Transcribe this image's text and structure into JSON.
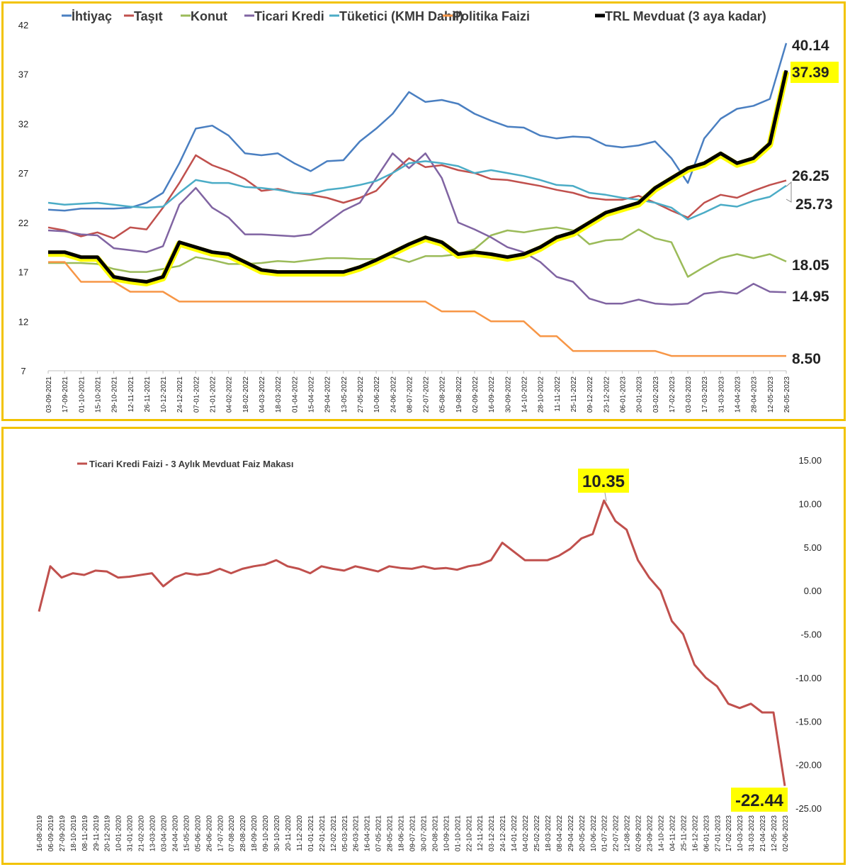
{
  "colors": {
    "border": "#f2c300",
    "highlight": "#ffff00",
    "ihtiyac": "#4a7fc1",
    "tasit": "#c0504d",
    "konut": "#9bbb59",
    "ticari": "#8064a2",
    "tuketici": "#4bacc6",
    "politika": "#f79646",
    "trl": "#000000",
    "spread": "#c0504d"
  },
  "chart_data": [
    {
      "type": "line",
      "legend_position": "top",
      "ylim": [
        7,
        42
      ],
      "yticks": [
        "7",
        "12",
        "17",
        "22",
        "27",
        "32",
        "37",
        "42"
      ],
      "x_labels": [
        "03-09-2021",
        "17-09-2021",
        "01-10-2021",
        "15-10-2021",
        "29-10-2021",
        "12-11-2021",
        "26-11-2021",
        "10-12-2021",
        "24-12-2021",
        "07-01-2022",
        "21-01-2022",
        "04-02-2022",
        "18-02-2022",
        "04-03-2022",
        "18-03-2022",
        "01-04-2022",
        "15-04-2022",
        "29-04-2022",
        "13-05-2022",
        "27-05-2022",
        "10-06-2022",
        "24-06-2022",
        "08-07-2022",
        "22-07-2022",
        "05-08-2022",
        "19-08-2022",
        "02-09-2022",
        "16-09-2022",
        "30-09-2022",
        "14-10-2022",
        "28-10-2022",
        "11-11-2022",
        "25-11-2022",
        "09-12-2022",
        "23-12-2022",
        "06-01-2023",
        "20-01-2023",
        "03-02-2023",
        "17-02-2023",
        "03-03-2023",
        "17-03-2023",
        "31-03-2023",
        "14-04-2023",
        "28-04-2023",
        "12-05-2023",
        "26-05-2023"
      ],
      "series": [
        {
          "name": "İhtiyaç",
          "color_key": "ihtiyac",
          "end_label": "40.14",
          "values": [
            23.3,
            23.2,
            23.4,
            23.4,
            23.4,
            23.5,
            24.0,
            25.0,
            28.0,
            31.5,
            31.8,
            30.8,
            29.0,
            28.8,
            29.0,
            28.0,
            27.2,
            28.2,
            28.3,
            30.2,
            31.5,
            33.0,
            35.2,
            34.2,
            34.4,
            34.0,
            33.0,
            32.3,
            31.7,
            31.6,
            30.8,
            30.5,
            30.7,
            30.6,
            29.8,
            29.6,
            29.8,
            30.2,
            28.5,
            26.0,
            30.5,
            32.5,
            33.5,
            33.8,
            34.5,
            40.14
          ]
        },
        {
          "name": "Taşıt",
          "color_key": "tasit",
          "end_label": "26.25",
          "values": [
            21.5,
            21.2,
            20.6,
            21.0,
            20.4,
            21.5,
            21.3,
            23.5,
            26.0,
            28.8,
            27.8,
            27.2,
            26.4,
            25.2,
            25.4,
            25.0,
            24.8,
            24.5,
            24.0,
            24.5,
            25.2,
            27.0,
            28.5,
            27.6,
            27.8,
            27.3,
            27.0,
            26.4,
            26.3,
            26.0,
            25.7,
            25.3,
            25.0,
            24.5,
            24.3,
            24.3,
            24.7,
            24.0,
            23.2,
            22.5,
            24.0,
            24.8,
            24.5,
            25.2,
            25.8,
            26.25
          ]
        },
        {
          "name": "Konut",
          "color_key": "konut",
          "end_label": "18.05",
          "values": [
            17.9,
            17.9,
            17.9,
            17.8,
            17.3,
            17.0,
            17.0,
            17.3,
            17.6,
            18.5,
            18.2,
            17.8,
            17.8,
            17.9,
            18.1,
            18.0,
            18.2,
            18.4,
            18.4,
            18.3,
            18.3,
            18.5,
            18.0,
            18.6,
            18.6,
            18.8,
            19.3,
            20.7,
            21.2,
            21.0,
            21.3,
            21.5,
            21.2,
            19.8,
            20.2,
            20.3,
            21.3,
            20.4,
            20.0,
            16.5,
            17.5,
            18.4,
            18.8,
            18.4,
            18.8,
            18.05
          ]
        },
        {
          "name": "Ticari Kredi",
          "color_key": "ticari",
          "end_label": "14.95",
          "values": [
            21.2,
            21.1,
            20.8,
            20.7,
            19.4,
            19.2,
            19.0,
            19.6,
            23.8,
            25.5,
            23.5,
            22.5,
            20.8,
            20.8,
            20.7,
            20.6,
            20.8,
            22.0,
            23.2,
            24.0,
            26.5,
            29.0,
            27.5,
            29.0,
            26.5,
            22.0,
            21.3,
            20.5,
            19.5,
            19.0,
            18.0,
            16.5,
            16.0,
            14.3,
            13.8,
            13.8,
            14.2,
            13.8,
            13.7,
            13.8,
            14.8,
            15.0,
            14.8,
            15.8,
            15.0,
            14.95
          ]
        },
        {
          "name": "Tüketici (KMH Dahil)",
          "color_key": "tuketici",
          "end_label": "25.73",
          "values": [
            24.0,
            23.8,
            23.9,
            24.0,
            23.8,
            23.6,
            23.5,
            23.6,
            25.0,
            26.3,
            26.0,
            26.0,
            25.6,
            25.5,
            25.3,
            25.0,
            24.9,
            25.3,
            25.5,
            25.8,
            26.2,
            27.0,
            28.0,
            28.2,
            28.0,
            27.7,
            27.0,
            27.3,
            27.0,
            26.7,
            26.3,
            25.8,
            25.7,
            25.0,
            24.8,
            24.5,
            24.3,
            24.0,
            23.5,
            22.3,
            23.0,
            23.8,
            23.6,
            24.2,
            24.6,
            25.73
          ]
        },
        {
          "name": "Politika Faizi",
          "color_key": "politika",
          "end_label": "8.50",
          "values": [
            18,
            18,
            16,
            16,
            16,
            15,
            15,
            15,
            14,
            14,
            14,
            14,
            14,
            14,
            14,
            14,
            14,
            14,
            14,
            14,
            14,
            14,
            14,
            14,
            13,
            13,
            13,
            12,
            12,
            12,
            10.5,
            10.5,
            9,
            9,
            9,
            9,
            9,
            9,
            8.5,
            8.5,
            8.5,
            8.5,
            8.5,
            8.5,
            8.5,
            8.5
          ]
        },
        {
          "name": "TRL Mevduat (3 aya kadar)",
          "color_key": "trl",
          "end_label": "37.39",
          "values": [
            19.0,
            19.0,
            18.5,
            18.5,
            16.5,
            16.2,
            16.0,
            16.5,
            20.0,
            19.5,
            19.0,
            18.8,
            18.0,
            17.2,
            17.0,
            17.0,
            17.0,
            17.0,
            17.0,
            17.5,
            18.2,
            19.0,
            19.8,
            20.5,
            20.0,
            18.8,
            19.0,
            18.8,
            18.5,
            18.8,
            19.5,
            20.5,
            21.0,
            22.0,
            23.0,
            23.5,
            24.0,
            25.5,
            26.5,
            27.5,
            28.0,
            29.0,
            28.0,
            28.5,
            30.0,
            37.39
          ]
        }
      ]
    },
    {
      "type": "line",
      "legend_position": "top-left",
      "ylim": [
        -25,
        15
      ],
      "yticks": [
        "15.00",
        "10.00",
        "5.00",
        "0.00",
        "-5.00",
        "-10.00",
        "-15.00",
        "-20.00",
        "-25.00"
      ],
      "x_labels": [
        "16-08-2019",
        "06-09-2019",
        "27-09-2019",
        "18-10-2019",
        "08-11-2019",
        "29-11-2019",
        "20-12-2019",
        "10-01-2020",
        "31-01-2020",
        "21-02-2020",
        "13-03-2020",
        "03-04-2020",
        "24-04-2020",
        "15-05-2020",
        "05-06-2020",
        "26-06-2020",
        "17-07-2020",
        "07-08-2020",
        "28-08-2020",
        "18-09-2020",
        "09-10-2020",
        "30-10-2020",
        "20-11-2020",
        "11-12-2020",
        "01-01-2021",
        "22-01-2021",
        "12-02-2021",
        "05-03-2021",
        "26-03-2021",
        "16-04-2021",
        "07-05-2021",
        "28-05-2021",
        "18-06-2021",
        "09-07-2021",
        "30-07-2021",
        "20-08-2021",
        "10-09-2021",
        "01-10-2021",
        "22-10-2021",
        "12-11-2021",
        "03-12-2021",
        "24-12-2021",
        "14-01-2022",
        "04-02-2022",
        "25-02-2022",
        "18-03-2022",
        "08-04-2022",
        "29-04-2022",
        "20-05-2022",
        "10-06-2022",
        "01-07-2022",
        "22-07-2022",
        "12-08-2022",
        "02-09-2022",
        "23-09-2022",
        "14-10-2022",
        "04-11-2022",
        "25-11-2022",
        "16-12-2022",
        "06-01-2023",
        "27-01-2023",
        "17-02-2023",
        "10-03-2023",
        "31-03-2023",
        "21-04-2023",
        "12-05-2023",
        "02-06-2023"
      ],
      "series": [
        {
          "name": "Ticari Kredi Faizi - 3 Aylık Mevduat Faiz Makası",
          "color_key": "spread",
          "values": [
            -2.4,
            2.8,
            1.5,
            2.0,
            1.8,
            2.3,
            2.2,
            1.5,
            1.6,
            1.8,
            2.0,
            0.5,
            1.5,
            2.0,
            1.8,
            2.0,
            2.5,
            2.0,
            2.5,
            2.8,
            3.0,
            3.5,
            2.8,
            2.5,
            2.0,
            2.8,
            2.5,
            2.3,
            2.8,
            2.5,
            2.2,
            2.8,
            2.6,
            2.5,
            2.8,
            2.5,
            2.6,
            2.4,
            2.8,
            3.0,
            3.5,
            5.5,
            4.5,
            3.5,
            3.5,
            3.5,
            4.0,
            4.8,
            6.0,
            6.5,
            10.35,
            8.0,
            7.0,
            3.5,
            1.5,
            0.0,
            -3.5,
            -5.0,
            -8.5,
            -10.0,
            -11.0,
            -13.0,
            -13.5,
            -13.0,
            -14.0,
            -14.0,
            -22.44
          ],
          "peak_label": "10.35",
          "end_label": "-22.44"
        }
      ]
    }
  ]
}
